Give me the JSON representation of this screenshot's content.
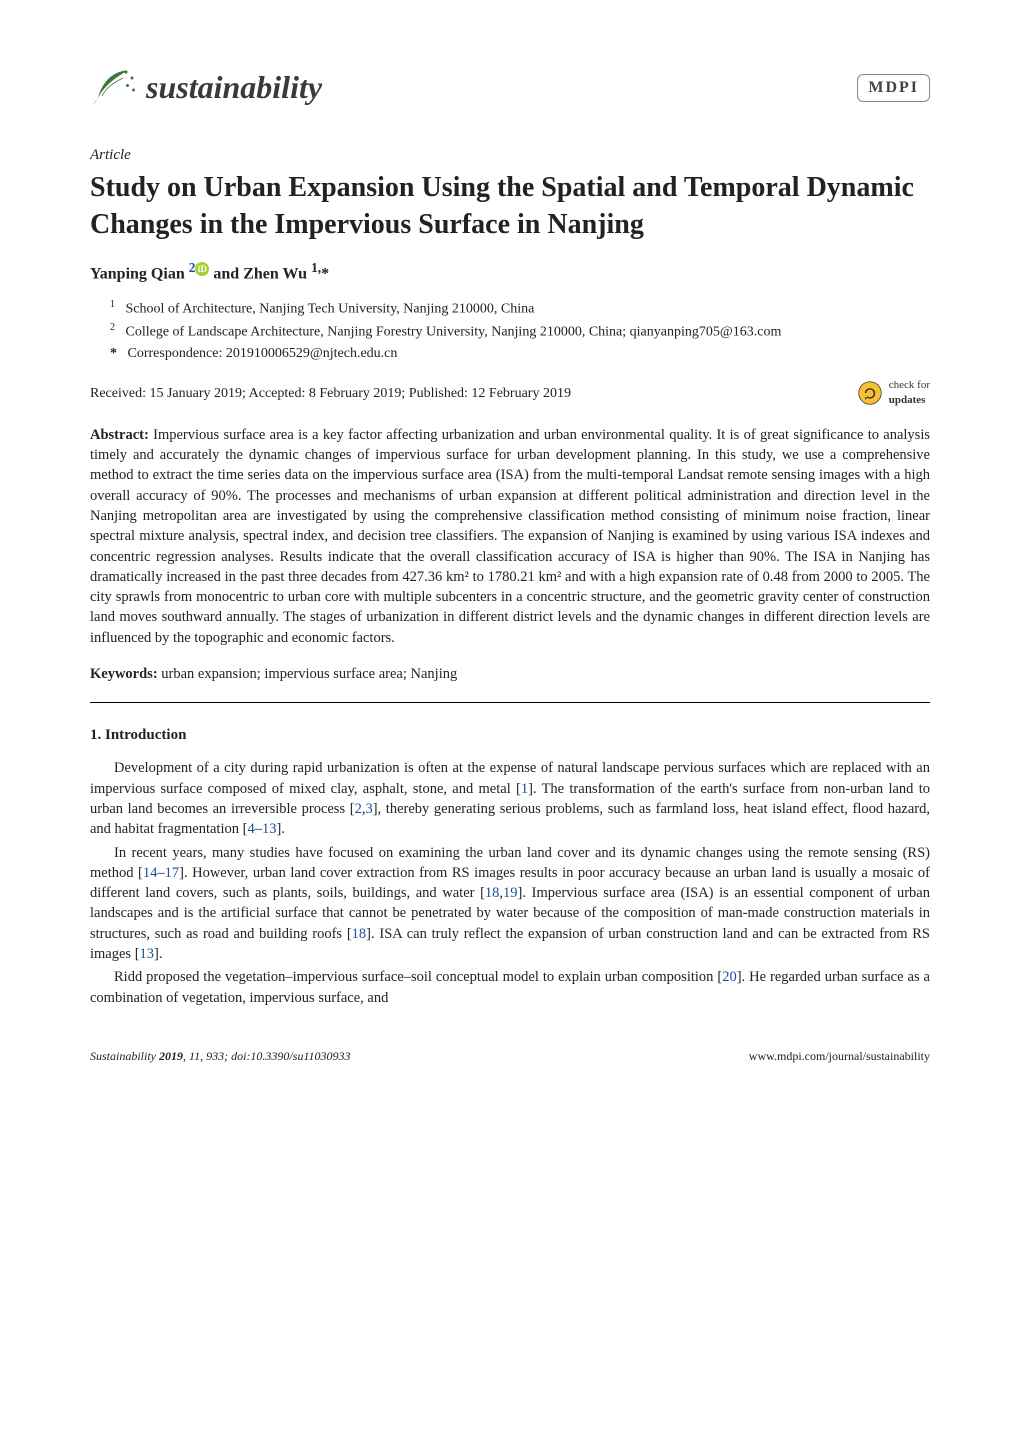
{
  "header": {
    "journal": "sustainability",
    "publisher": "MDPI"
  },
  "article_type": "Article",
  "title": "Study on Urban Expansion Using the Spatial and Temporal Dynamic Changes in the Impervious Surface in Nanjing",
  "authors_html": "Yanping Qian <sup><a href=\"#\">2</a></sup><span class=\"orcid\">iD</span> and Zhen Wu <sup>1,</sup>*",
  "affiliations": [
    {
      "num": "1",
      "text": "School of Architecture, Nanjing Tech University, Nanjing 210000, China"
    },
    {
      "num": "2",
      "text": "College of Landscape Architecture, Nanjing Forestry University, Nanjing 210000, China; qianyanping705@163.com"
    }
  ],
  "correspondence": "Correspondence: 201910006529@njtech.edu.cn",
  "dates": "Received: 15 January 2019; Accepted: 8 February 2019; Published: 12 February 2019",
  "check_updates": "check for updates",
  "abstract_label": "Abstract:",
  "abstract_text": " Impervious surface area is a key factor affecting urbanization and urban environmental quality. It is of great significance to analysis timely and accurately the dynamic changes of impervious surface for urban development planning. In this study, we use a comprehensive method to extract the time series data on the impervious surface area (ISA) from the multi-temporal Landsat remote sensing images with a high overall accuracy of 90%. The processes and mechanisms of urban expansion at different political administration and direction level in the Nanjing metropolitan area are investigated by using the comprehensive classification method consisting of minimum noise fraction, linear spectral mixture analysis, spectral index, and decision tree classifiers. The expansion of Nanjing is examined by using various ISA indexes and concentric regression analyses. Results indicate that the overall classification accuracy of ISA is higher than 90%. The ISA in Nanjing has dramatically increased in the past three decades from 427.36 km² to 1780.21 km² and with a high expansion rate of 0.48 from 2000 to 2005. The city sprawls from monocentric to urban core with multiple subcenters in a concentric structure, and the geometric gravity center of construction land moves southward annually. The stages of urbanization in different district levels and the dynamic changes in different direction levels are influenced by the topographic and economic factors.",
  "keywords_label": "Keywords:",
  "keywords_text": " urban expansion; impervious surface area; Nanjing",
  "section1": "1. Introduction",
  "body": [
    "Development of a city during rapid urbanization is often at the expense of natural landscape pervious surfaces which are replaced with an impervious surface composed of mixed clay, asphalt, stone, and metal [<a href=\"#\">1</a>]. The transformation of the earth's surface from non-urban land to urban land becomes an irreversible process [<a href=\"#\">2</a>,<a href=\"#\">3</a>], thereby generating serious problems, such as farmland loss, heat island effect, flood hazard, and habitat fragmentation [<a href=\"#\">4</a>–<a href=\"#\">13</a>].",
    "In recent years, many studies have focused on examining the urban land cover and its dynamic changes using the remote sensing (RS) method [<a href=\"#\">14</a>–<a href=\"#\">17</a>]. However, urban land cover extraction from RS images results in poor accuracy because an urban land is usually a mosaic of different land covers, such as plants, soils, buildings, and water [<a href=\"#\">18</a>,<a href=\"#\">19</a>]. Impervious surface area (ISA) is an essential component of urban landscapes and is the artificial surface that cannot be penetrated by water because of the composition of man-made construction materials in structures, such as road and building roofs [<a href=\"#\">18</a>]. ISA can truly reflect the expansion of urban construction land and can be extracted from RS images [<a href=\"#\">13</a>].",
    "Ridd proposed the vegetation–impervious surface–soil conceptual model to explain urban composition [<a href=\"#\">20</a>]. He regarded urban surface as a combination of vegetation, impervious surface, and"
  ],
  "footer": {
    "left": "Sustainability 2019, 11, 933; doi:10.3390/su11030933",
    "right": "www.mdpi.com/journal/sustainability"
  },
  "colors": {
    "link": "#1a4fa0",
    "logo_green": "#3a7a3a",
    "orcid_green": "#a6ce39"
  }
}
